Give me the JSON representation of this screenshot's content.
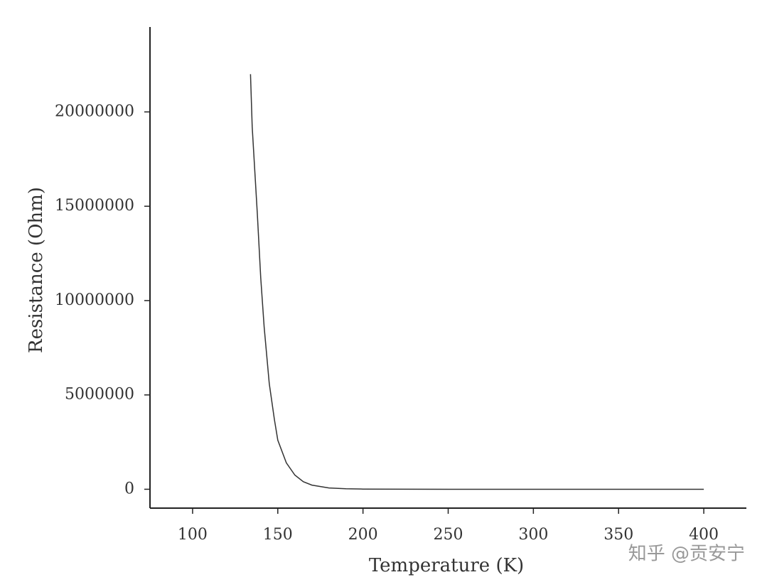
{
  "chart_data": {
    "type": "line",
    "xlabel": "Temperature (K)",
    "ylabel": "Resistance (Ohm)",
    "watermark": "知乎 @贡安宁",
    "x": [
      134,
      135,
      138,
      140,
      142,
      145,
      148,
      150,
      155,
      160,
      165,
      170,
      180,
      190,
      200,
      250,
      300,
      350,
      400
    ],
    "values": [
      22000000,
      19200000,
      14600000,
      11200000,
      8600000,
      5600000,
      3700000,
      2600000,
      1400000,
      750000,
      400000,
      220000,
      70000,
      30000,
      10000,
      0,
      0,
      0,
      0
    ],
    "color": "#333333",
    "xlim": [
      75,
      425
    ],
    "ylim": [
      -1000000,
      24500000
    ],
    "xticks": [
      100,
      150,
      200,
      250,
      300,
      350,
      400
    ],
    "yticks": [
      0,
      5000000,
      10000000,
      15000000,
      20000000
    ],
    "grid": false
  }
}
